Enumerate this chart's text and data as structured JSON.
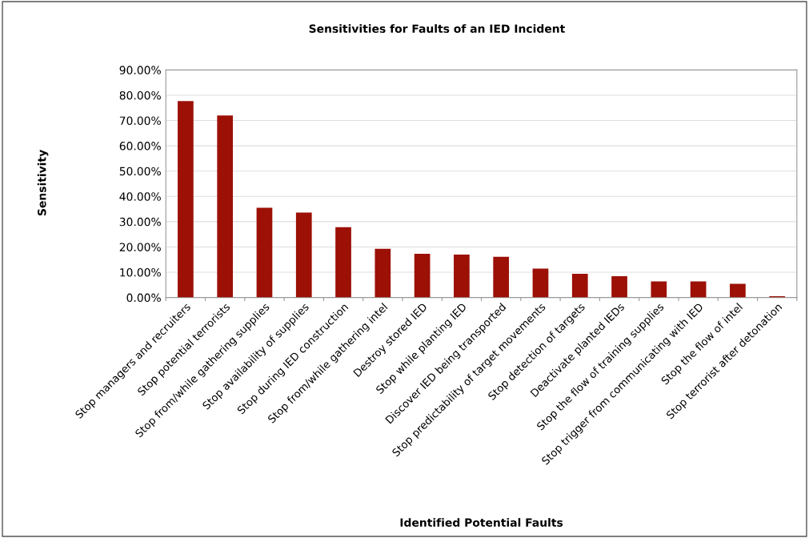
{
  "chart_data": {
    "type": "bar",
    "title": "Sensitivities for Faults of an IED Incident",
    "xlabel": "Identified Potential Faults",
    "ylabel": "Sensitivity",
    "categories": [
      "Stop managers and recruiters",
      "Stop potential terrorists",
      "Stop from/while gathering supplies",
      "Stop availability of supplies",
      "Stop during IED construction",
      "Stop from/while gathering intel",
      "Destroy stored IED",
      "Stop while planting IED",
      "Discover IED being transported",
      "Stop predictability of target movements",
      "Stop detection of targets",
      "Deactivate planted IEDs",
      "Stop the flow of training supplies",
      "Stop trigger from communicating with IED",
      "Stop the flow of intel",
      "Stop terrorist after detonation"
    ],
    "values": [
      77.7,
      72.0,
      35.5,
      33.6,
      27.8,
      19.3,
      17.3,
      17.0,
      16.1,
      11.4,
      9.4,
      8.4,
      6.4,
      6.4,
      5.4,
      0.5
    ],
    "color": "#9c1006",
    "ylim": [
      0,
      90
    ],
    "yticks": [
      {
        "value": 0,
        "label": "0.00%"
      },
      {
        "value": 10,
        "label": "10.00%"
      },
      {
        "value": 20,
        "label": "20.00%"
      },
      {
        "value": 30,
        "label": "30.00%"
      },
      {
        "value": 40,
        "label": "40.00%"
      },
      {
        "value": 50,
        "label": "50.00%"
      },
      {
        "value": 60,
        "label": "60.00%"
      },
      {
        "value": 70,
        "label": "70.00%"
      },
      {
        "value": 80,
        "label": "80.00%"
      },
      {
        "value": 90,
        "label": "90.00%"
      }
    ],
    "grid": "y"
  }
}
